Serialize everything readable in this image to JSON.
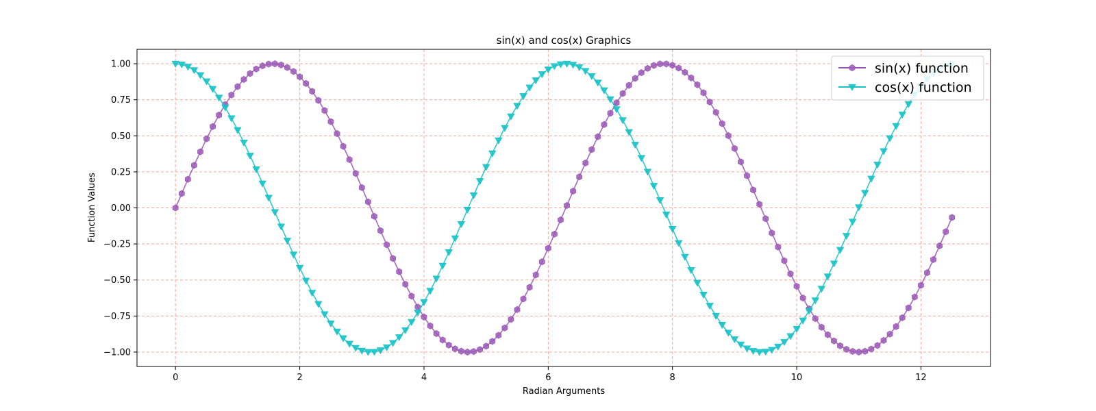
{
  "chart_data": {
    "type": "line",
    "title": "sin(x) and cos(x) Graphics",
    "xlabel": "Radian Arguments",
    "ylabel": "Function Values",
    "xlim": [
      -0.62,
      13.12
    ],
    "ylim": [
      -1.1,
      1.1
    ],
    "xticks": [
      0,
      2,
      4,
      6,
      8,
      10,
      12
    ],
    "xtick_labels": [
      "0",
      "2",
      "4",
      "6",
      "8",
      "10",
      "12"
    ],
    "yticks": [
      1.0,
      0.75,
      0.5,
      0.25,
      0.0,
      -0.25,
      -0.5,
      -0.75,
      -1.0
    ],
    "ytick_labels": [
      "1.00",
      "0.75",
      "0.50",
      "0.25",
      "0.00",
      "−0.25",
      "−0.50",
      "−0.75",
      "−1.00"
    ],
    "grid": true,
    "grid_color": "#f4a79c",
    "legend_position": "top-right",
    "x": [
      0.0,
      0.1,
      0.2,
      0.3,
      0.4,
      0.5,
      0.6,
      0.7,
      0.8,
      0.9,
      1.0,
      1.1,
      1.2,
      1.3,
      1.4,
      1.5,
      1.6,
      1.7,
      1.8,
      1.9,
      2.0,
      2.1,
      2.2,
      2.3,
      2.4,
      2.5,
      2.6,
      2.7,
      2.8,
      2.9,
      3.0,
      3.1,
      3.2,
      3.3,
      3.4,
      3.5,
      3.6,
      3.7,
      3.8,
      3.9,
      4.0,
      4.1,
      4.2,
      4.3,
      4.4,
      4.5,
      4.6,
      4.7,
      4.8,
      4.9,
      5.0,
      5.1,
      5.2,
      5.3,
      5.4,
      5.5,
      5.6,
      5.7,
      5.8,
      5.9,
      6.0,
      6.1,
      6.2,
      6.3,
      6.4,
      6.5,
      6.6,
      6.7,
      6.8,
      6.9,
      7.0,
      7.1,
      7.2,
      7.3,
      7.4,
      7.5,
      7.6,
      7.7,
      7.8,
      7.9,
      8.0,
      8.1,
      8.2,
      8.3,
      8.4,
      8.5,
      8.6,
      8.7,
      8.8,
      8.9,
      9.0,
      9.1,
      9.2,
      9.3,
      9.4,
      9.5,
      9.6,
      9.7,
      9.8,
      9.9,
      10.0,
      10.1,
      10.2,
      10.3,
      10.4,
      10.5,
      10.6,
      10.7,
      10.8,
      10.9,
      11.0,
      11.1,
      11.2,
      11.3,
      11.4,
      11.5,
      11.6,
      11.7,
      11.8,
      11.9,
      12.0,
      12.1,
      12.2,
      12.3,
      12.4,
      12.5
    ],
    "series": [
      {
        "name": "sin(x) function",
        "color": "#9b59b6",
        "marker": "hexagon",
        "values": [
          0.0,
          0.0998,
          0.1987,
          0.2955,
          0.3894,
          0.4794,
          0.5646,
          0.6442,
          0.7174,
          0.7833,
          0.8415,
          0.8912,
          0.932,
          0.9636,
          0.9854,
          0.9975,
          0.9996,
          0.9917,
          0.9738,
          0.9463,
          0.9093,
          0.8632,
          0.8085,
          0.7457,
          0.6755,
          0.5985,
          0.5155,
          0.4274,
          0.335,
          0.2392,
          0.1411,
          0.0416,
          -0.0584,
          -0.1577,
          -0.2555,
          -0.3508,
          -0.4425,
          -0.5298,
          -0.6119,
          -0.6878,
          -0.7568,
          -0.8183,
          -0.8716,
          -0.9162,
          -0.9516,
          -0.9775,
          -0.9937,
          -0.9999,
          -0.9962,
          -0.9825,
          -0.9589,
          -0.9258,
          -0.8835,
          -0.8323,
          -0.7728,
          -0.7055,
          -0.6313,
          -0.5507,
          -0.4646,
          -0.3739,
          -0.2794,
          -0.1822,
          -0.0831,
          0.0168,
          0.1165,
          0.2151,
          0.3115,
          0.4048,
          0.4941,
          0.5784,
          0.657,
          0.729,
          0.7937,
          0.8504,
          0.8987,
          0.938,
          0.9679,
          0.9882,
          0.9985,
          0.9989,
          0.9894,
          0.9699,
          0.9407,
          0.9022,
          0.8546,
          0.7985,
          0.7344,
          0.663,
          0.5849,
          0.501,
          0.4121,
          0.319,
          0.2229,
          0.1245,
          0.0248,
          -0.0752,
          -0.1743,
          -0.2718,
          -0.3665,
          -0.4575,
          -0.544,
          -0.6251,
          -0.6999,
          -0.7677,
          -0.8278,
          -0.8797,
          -0.9228,
          -0.9566,
          -0.9809,
          -0.9954,
          -1.0,
          -0.9946,
          -0.9792,
          -0.9541,
          -0.9193,
          -0.8755,
          -0.8228,
          -0.7618,
          -0.6934,
          -0.6181,
          -0.5366,
          -0.4496,
          -0.3582,
          -0.2631,
          -0.1655,
          -0.0663
        ]
      },
      {
        "name": "cos(x) function",
        "color": "#17c3c8",
        "marker": "triangle-down",
        "values": [
          1.0,
          0.995,
          0.9801,
          0.9553,
          0.9211,
          0.8776,
          0.8253,
          0.7648,
          0.6967,
          0.6216,
          0.5403,
          0.4536,
          0.3624,
          0.2675,
          0.17,
          0.0707,
          -0.0292,
          -0.1288,
          -0.2272,
          -0.3233,
          -0.4161,
          -0.5048,
          -0.5885,
          -0.6663,
          -0.7374,
          -0.8011,
          -0.8569,
          -0.9041,
          -0.9422,
          -0.971,
          -0.99,
          -0.9991,
          -0.9983,
          -0.9875,
          -0.9668,
          -0.9365,
          -0.8968,
          -0.8481,
          -0.791,
          -0.7259,
          -0.6536,
          -0.5748,
          -0.4903,
          -0.4008,
          -0.3073,
          -0.2108,
          -0.1122,
          -0.0124,
          0.0875,
          0.1865,
          0.2837,
          0.378,
          0.4685,
          0.5544,
          0.6347,
          0.7087,
          0.7756,
          0.8347,
          0.8855,
          0.9275,
          0.9602,
          0.9833,
          0.9965,
          0.9999,
          0.9932,
          0.9766,
          0.9502,
          0.9144,
          0.8694,
          0.8157,
          0.7539,
          0.6845,
          0.6084,
          0.5261,
          0.4385,
          0.3466,
          0.2513,
          0.1534,
          0.054,
          -0.046,
          -0.1455,
          -0.2435,
          -0.3392,
          -0.4314,
          -0.5193,
          -0.602,
          -0.6787,
          -0.7486,
          -0.8111,
          -0.8654,
          -0.9111,
          -0.9477,
          -0.9748,
          -0.9922,
          -0.9997,
          -0.9972,
          -0.9847,
          -0.9624,
          -0.9304,
          -0.8892,
          -0.8391,
          -0.7806,
          -0.7143,
          -0.6408,
          -0.561,
          -0.4755,
          -0.3853,
          -0.2913,
          -0.1943,
          -0.0954,
          0.0044,
          0.1042,
          0.203,
          0.2997,
          0.3935,
          0.4832,
          0.568,
          0.6474,
          0.7203,
          0.786,
          0.8439,
          0.8932,
          0.9336,
          0.9646,
          0.9859,
          0.9973
        ]
      }
    ]
  }
}
